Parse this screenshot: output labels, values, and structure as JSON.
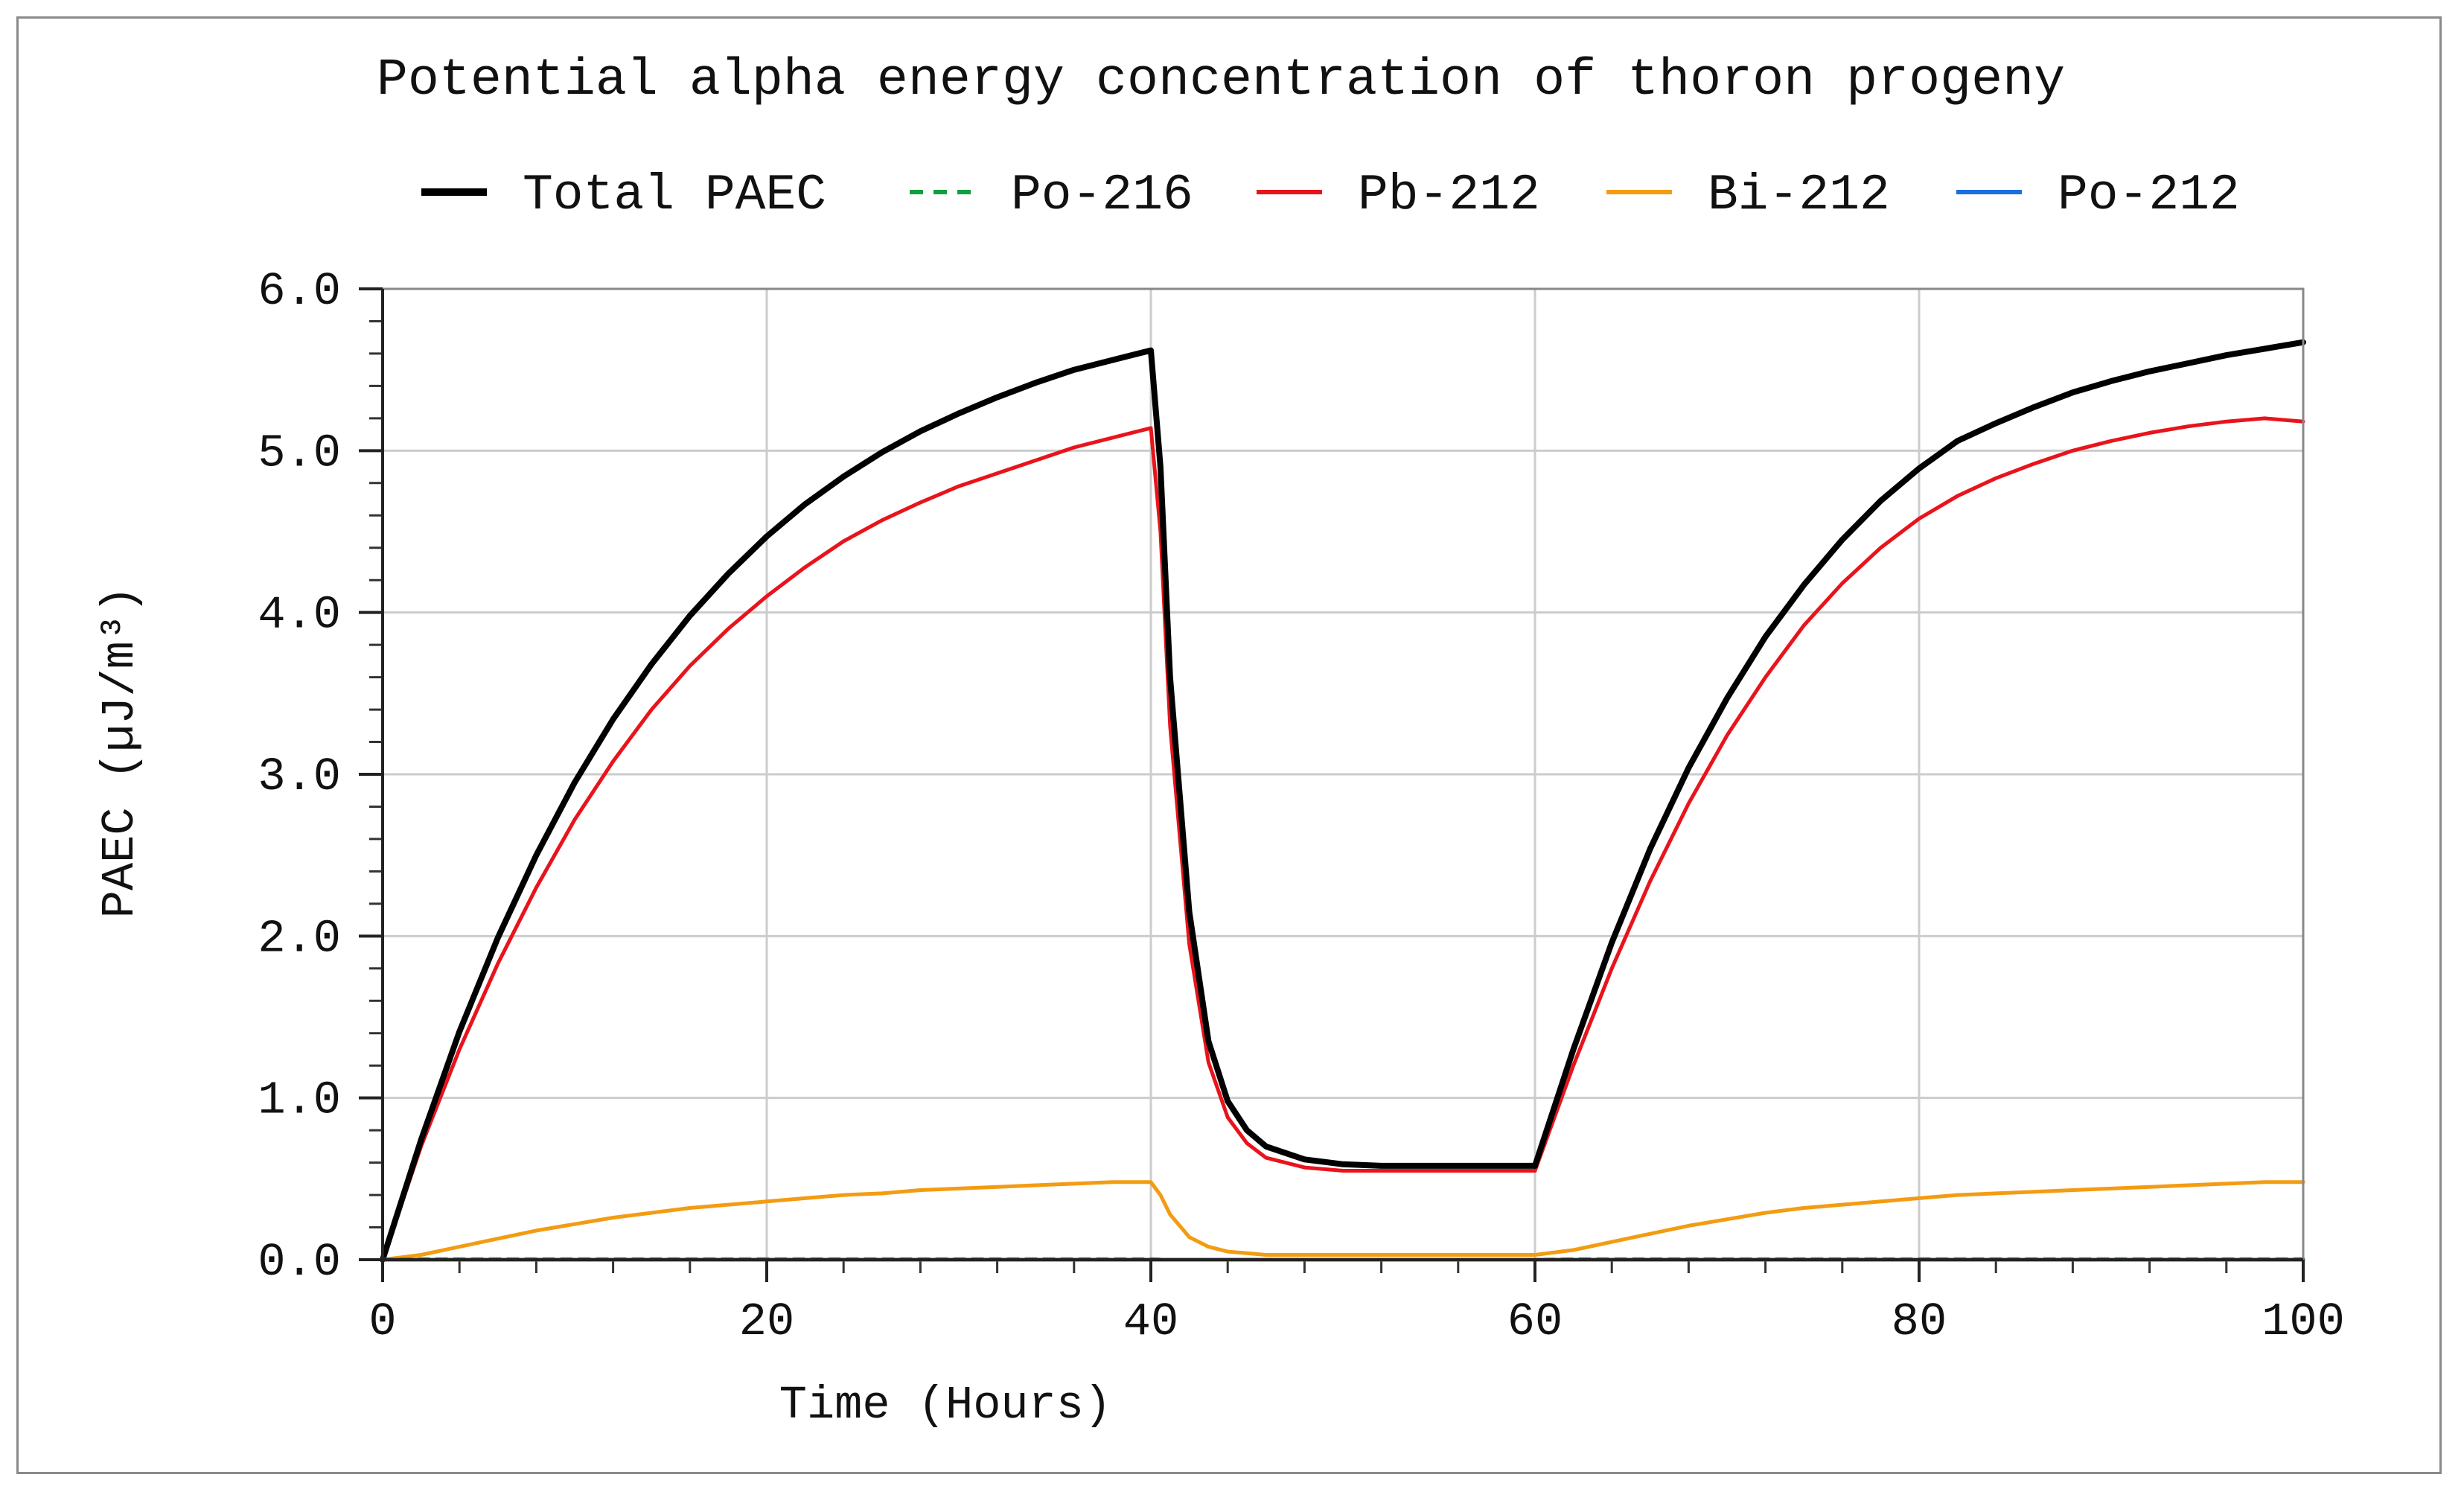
{
  "chart_data": {
    "type": "line",
    "title": "Potential alpha energy concentration of thoron progeny",
    "xlabel": "Time (Hours)",
    "ylabel": "PAEC (µJ/m³)",
    "xlim": [
      0,
      100
    ],
    "ylim": [
      0,
      6
    ],
    "grid": true,
    "legend_position": "top",
    "x_ticks": [
      0,
      20,
      40,
      60,
      80,
      100
    ],
    "x_tick_labels": [
      "0",
      "20",
      "40",
      "60",
      "80",
      "100"
    ],
    "y_ticks": [
      0,
      1,
      2,
      3,
      4,
      5,
      6
    ],
    "y_tick_labels": [
      "0.0",
      "1.0",
      "2.0",
      "3.0",
      "4.0",
      "5.0",
      "6.0"
    ],
    "x": [
      0,
      2,
      4,
      6,
      8,
      10,
      12,
      14,
      16,
      18,
      20,
      22,
      24,
      26,
      28,
      30,
      32,
      34,
      36,
      38,
      40,
      40.5,
      41,
      42,
      43,
      44,
      45,
      46,
      48,
      50,
      52,
      55,
      58,
      60,
      62,
      64,
      66,
      68,
      70,
      72,
      74,
      76,
      78,
      80,
      82,
      84,
      86,
      88,
      90,
      92,
      94,
      96,
      98,
      100
    ],
    "series": [
      {
        "name": "Total PAEC",
        "color": "#000000",
        "dash": "solid",
        "values": [
          0,
          0.74,
          1.41,
          1.99,
          2.5,
          2.95,
          3.34,
          3.68,
          3.98,
          4.24,
          4.47,
          4.67,
          4.84,
          4.99,
          5.12,
          5.23,
          5.33,
          5.42,
          5.5,
          5.56,
          5.62,
          4.9,
          3.6,
          2.15,
          1.35,
          0.98,
          0.8,
          0.7,
          0.62,
          0.59,
          0.58,
          0.58,
          0.58,
          0.58,
          1.3,
          1.96,
          2.54,
          3.04,
          3.47,
          3.85,
          4.17,
          4.45,
          4.69,
          4.89,
          5.06,
          5.17,
          5.27,
          5.36,
          5.43,
          5.49,
          5.54,
          5.59,
          5.63,
          5.67
        ]
      },
      {
        "name": "Po-216",
        "color": "#10a040",
        "dash": "dashed",
        "values": [
          0,
          0.003,
          0.003,
          0.003,
          0.003,
          0.003,
          0.003,
          0.003,
          0.003,
          0.003,
          0.003,
          0.003,
          0.003,
          0.003,
          0.003,
          0.003,
          0.003,
          0.003,
          0.003,
          0.003,
          0.003,
          0.001,
          0,
          0,
          0,
          0,
          0,
          0,
          0,
          0,
          0,
          0,
          0,
          0,
          0.003,
          0.003,
          0.003,
          0.003,
          0.003,
          0.003,
          0.003,
          0.003,
          0.003,
          0.003,
          0.003,
          0.003,
          0.003,
          0.003,
          0.003,
          0.003,
          0.003,
          0.003,
          0.003,
          0.003
        ]
      },
      {
        "name": "Pb-212",
        "color": "#e8141c",
        "dash": "solid",
        "values": [
          0,
          0.7,
          1.3,
          1.83,
          2.3,
          2.72,
          3.08,
          3.4,
          3.67,
          3.9,
          4.1,
          4.28,
          4.44,
          4.57,
          4.68,
          4.78,
          4.86,
          4.94,
          5.02,
          5.08,
          5.14,
          4.5,
          3.3,
          1.95,
          1.22,
          0.88,
          0.72,
          0.63,
          0.57,
          0.55,
          0.55,
          0.55,
          0.55,
          0.55,
          1.2,
          1.8,
          2.34,
          2.82,
          3.24,
          3.6,
          3.92,
          4.18,
          4.4,
          4.58,
          4.72,
          4.83,
          4.92,
          5.0,
          5.06,
          5.11,
          5.15,
          5.18,
          5.2,
          5.18
        ]
      },
      {
        "name": "Bi-212",
        "color": "#f39c12",
        "dash": "solid",
        "values": [
          0,
          0.03,
          0.08,
          0.13,
          0.18,
          0.22,
          0.26,
          0.29,
          0.32,
          0.34,
          0.36,
          0.38,
          0.4,
          0.41,
          0.43,
          0.44,
          0.45,
          0.46,
          0.47,
          0.48,
          0.48,
          0.4,
          0.28,
          0.14,
          0.08,
          0.05,
          0.04,
          0.03,
          0.03,
          0.03,
          0.03,
          0.03,
          0.03,
          0.03,
          0.06,
          0.11,
          0.16,
          0.21,
          0.25,
          0.29,
          0.32,
          0.34,
          0.36,
          0.38,
          0.4,
          0.41,
          0.42,
          0.43,
          0.44,
          0.45,
          0.46,
          0.47,
          0.48,
          0.48
        ]
      },
      {
        "name": "Po-212",
        "color": "#1a6fe0",
        "dash": "solid",
        "values": [
          0,
          0,
          0,
          0,
          0,
          0,
          0,
          0,
          0,
          0,
          0,
          0,
          0,
          0,
          0,
          0,
          0,
          0,
          0,
          0,
          0,
          0,
          0,
          0,
          0,
          0,
          0,
          0,
          0,
          0,
          0,
          0,
          0,
          0,
          0,
          0,
          0,
          0,
          0,
          0,
          0,
          0,
          0,
          0,
          0,
          0,
          0,
          0,
          0,
          0,
          0,
          0,
          0,
          0
        ]
      }
    ]
  }
}
